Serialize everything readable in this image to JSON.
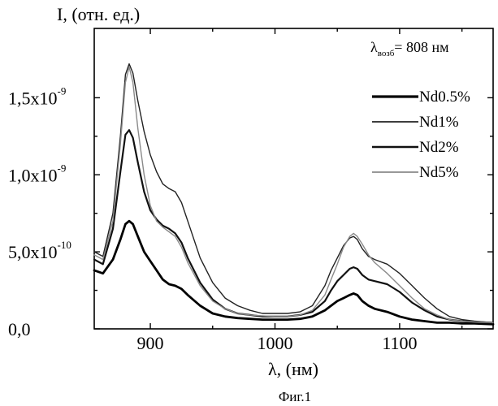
{
  "chart_data": {
    "type": "line",
    "title": "",
    "ylabel": "I, (отн. ед.)",
    "xlabel": "λ, (нм)",
    "caption": "Фиг.1",
    "annotation": {
      "symbol": "λ",
      "subscript": "возб",
      "rest": "= 808 нм"
    },
    "xlim": [
      855,
      1175
    ],
    "ylim": [
      0,
      1.95e-09
    ],
    "x_ticks": [
      {
        "value": 900,
        "label": "900"
      },
      {
        "value": 1000,
        "label": "1000"
      },
      {
        "value": 1100,
        "label": "1100"
      }
    ],
    "y_ticks": [
      {
        "value": 0,
        "label": "0,0"
      },
      {
        "value": 5e-10,
        "label": "5,0x10",
        "exp": "-10"
      },
      {
        "value": 1e-09,
        "label": "1,0x10",
        "exp": "-9"
      },
      {
        "value": 1.5e-09,
        "label": "1,5x10",
        "exp": "-9"
      }
    ],
    "grid": false,
    "legend_position": "top-right",
    "series": [
      {
        "name": "Nd0.5%",
        "color": "#000000",
        "width": 2.8,
        "x": [
          855,
          862,
          870,
          876,
          880,
          883,
          886,
          890,
          895,
          900,
          905,
          910,
          915,
          920,
          925,
          930,
          940,
          950,
          960,
          970,
          980,
          990,
          1000,
          1010,
          1020,
          1030,
          1040,
          1045,
          1050,
          1055,
          1060,
          1063,
          1066,
          1070,
          1075,
          1080,
          1090,
          1100,
          1110,
          1120,
          1130,
          1140,
          1150,
          1160,
          1175
        ],
        "y": [
          3.8e-10,
          3.6e-10,
          4.5e-10,
          5.8e-10,
          6.8e-10,
          7e-10,
          6.8e-10,
          6e-10,
          5e-10,
          4.4e-10,
          3.8e-10,
          3.2e-10,
          2.9e-10,
          2.8e-10,
          2.6e-10,
          2.2e-10,
          1.5e-10,
          1e-10,
          8e-11,
          7e-11,
          6.5e-11,
          6e-11,
          6e-11,
          6e-11,
          6.5e-11,
          8e-11,
          1.2e-10,
          1.5e-10,
          1.8e-10,
          2e-10,
          2.2e-10,
          2.3e-10,
          2.2e-10,
          1.8e-10,
          1.5e-10,
          1.3e-10,
          1.1e-10,
          8e-11,
          6e-11,
          5e-11,
          4e-11,
          4e-11,
          3.5e-11,
          3.5e-11,
          3e-11
        ]
      },
      {
        "name": "Nd1%",
        "color": "#222222",
        "width": 1.4,
        "x": [
          855,
          862,
          870,
          876,
          880,
          883,
          886,
          890,
          895,
          900,
          905,
          910,
          915,
          920,
          925,
          930,
          940,
          950,
          960,
          970,
          980,
          990,
          1000,
          1010,
          1020,
          1030,
          1040,
          1045,
          1050,
          1055,
          1060,
          1063,
          1066,
          1070,
          1075,
          1080,
          1090,
          1100,
          1110,
          1120,
          1130,
          1140,
          1150,
          1160,
          1175
        ],
        "y": [
          5e-10,
          4.7e-10,
          7.5e-10,
          1.25e-09,
          1.65e-09,
          1.72e-09,
          1.66e-09,
          1.48e-09,
          1.28e-09,
          1.13e-09,
          1.02e-09,
          9.4e-10,
          9.1e-10,
          8.9e-10,
          8.2e-10,
          7e-10,
          4.6e-10,
          3e-10,
          2e-10,
          1.5e-10,
          1.2e-10,
          1e-10,
          1e-10,
          1e-10,
          1.1e-10,
          1.5e-10,
          2.8e-10,
          3.8e-10,
          4.6e-10,
          5.4e-10,
          5.9e-10,
          6e-10,
          5.8e-10,
          5.2e-10,
          4.7e-10,
          4.5e-10,
          4.2e-10,
          3.6e-10,
          2.8e-10,
          2e-10,
          1.3e-10,
          8e-11,
          6e-11,
          5e-11,
          4e-11
        ]
      },
      {
        "name": "Nd2%",
        "color": "#111111",
        "width": 2.2,
        "x": [
          855,
          862,
          870,
          876,
          880,
          883,
          886,
          890,
          895,
          900,
          905,
          910,
          915,
          920,
          925,
          930,
          940,
          950,
          960,
          970,
          980,
          990,
          1000,
          1010,
          1020,
          1030,
          1040,
          1045,
          1050,
          1055,
          1060,
          1063,
          1066,
          1070,
          1075,
          1080,
          1090,
          1100,
          1110,
          1120,
          1130,
          1140,
          1150,
          1160,
          1175
        ],
        "y": [
          4.5e-10,
          4.2e-10,
          6.5e-10,
          1.02e-09,
          1.26e-09,
          1.29e-09,
          1.24e-09,
          1.08e-09,
          8.9e-10,
          7.7e-10,
          7.1e-10,
          6.7e-10,
          6.5e-10,
          6.2e-10,
          5.6e-10,
          4.6e-10,
          3e-10,
          1.9e-10,
          1.3e-10,
          1e-10,
          9e-11,
          8e-11,
          8e-11,
          8e-11,
          9e-11,
          1.1e-10,
          1.8e-10,
          2.5e-10,
          3.1e-10,
          3.5e-10,
          3.9e-10,
          4e-10,
          3.9e-10,
          3.5e-10,
          3.2e-10,
          3.1e-10,
          2.9e-10,
          2.4e-10,
          1.7e-10,
          1.2e-10,
          8e-11,
          6e-11,
          5e-11,
          4.5e-11,
          4e-11
        ]
      },
      {
        "name": "Nd5%",
        "color": "#8a8a8a",
        "width": 1.4,
        "x": [
          855,
          862,
          870,
          876,
          880,
          883,
          886,
          890,
          895,
          900,
          905,
          910,
          915,
          920,
          925,
          930,
          940,
          950,
          960,
          970,
          980,
          990,
          1000,
          1010,
          1020,
          1030,
          1040,
          1045,
          1050,
          1055,
          1060,
          1063,
          1066,
          1070,
          1075,
          1080,
          1090,
          1100,
          1110,
          1120,
          1130,
          1140,
          1150,
          1160,
          1175
        ],
        "y": [
          4.8e-10,
          4.5e-10,
          7e-10,
          1.2e-09,
          1.6e-09,
          1.7e-09,
          1.6e-09,
          1.3e-09,
          1e-09,
          8e-10,
          7e-10,
          6.6e-10,
          6.3e-10,
          6e-10,
          5.3e-10,
          4.3e-10,
          2.8e-10,
          1.8e-10,
          1.3e-10,
          1e-10,
          9e-11,
          8.5e-11,
          8e-11,
          8e-11,
          9e-11,
          1.2e-10,
          2.2e-10,
          3.2e-10,
          4.2e-10,
          5.3e-10,
          6e-10,
          6.2e-10,
          6e-10,
          5.5e-10,
          4.8e-10,
          4.3e-10,
          3.6e-10,
          2.8e-10,
          2e-10,
          1.3e-10,
          9e-11,
          6e-11,
          5e-11,
          4.5e-11,
          4e-11
        ]
      }
    ]
  }
}
